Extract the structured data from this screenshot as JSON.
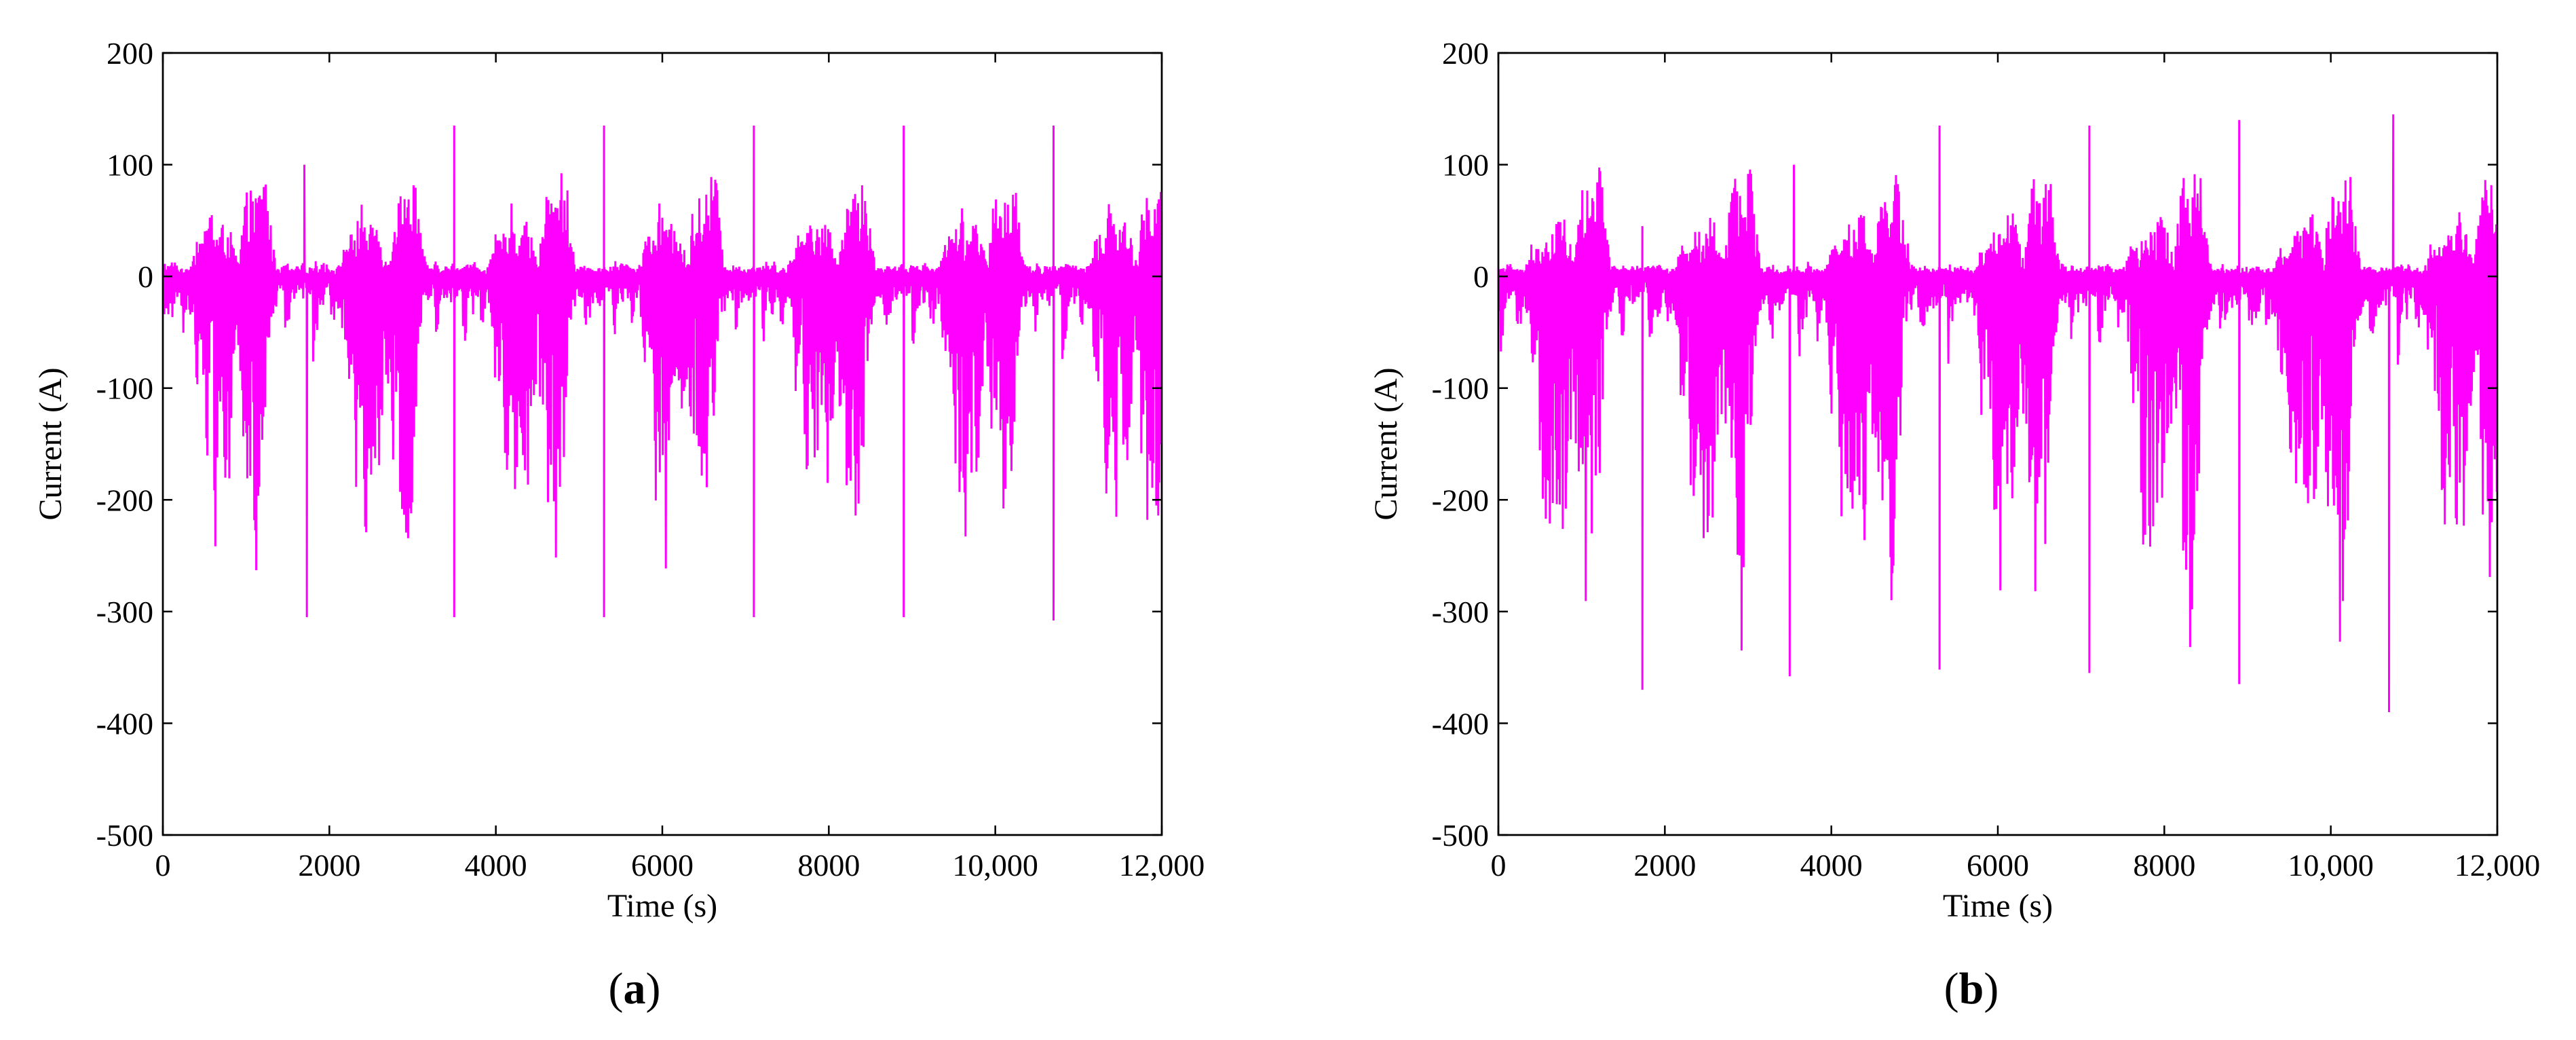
{
  "figure": {
    "panels": [
      "a",
      "b"
    ]
  },
  "chart_data": [
    {
      "type": "line",
      "panel_label": "a",
      "xlabel": "Time (s)",
      "ylabel": "Current (A)",
      "xlim": [
        0,
        12000
      ],
      "ylim": [
        -500,
        200
      ],
      "x_ticks": [
        0,
        2000,
        4000,
        6000,
        8000,
        10000,
        12000
      ],
      "x_tick_labels": [
        "0",
        "2000",
        "4000",
        "6000",
        "8000",
        "10,000",
        "12,000"
      ],
      "y_ticks": [
        -500,
        -400,
        -300,
        -200,
        -100,
        0,
        100,
        200
      ],
      "y_tick_labels": [
        "-500",
        "-400",
        "-300",
        "-200",
        "-100",
        "0",
        "100",
        "200"
      ],
      "grid": false,
      "series_color": "#ff00ff",
      "cycle_period": 1800,
      "cycle_start": 0,
      "cycle_profile_x": [
        0,
        40,
        80,
        120,
        160,
        200,
        240,
        280,
        320,
        360,
        400,
        440,
        480,
        520,
        560,
        600,
        640,
        680,
        720,
        760,
        800,
        840,
        880,
        920,
        960,
        1000,
        1040,
        1080,
        1120,
        1160,
        1200,
        1240,
        1280,
        1320,
        1360,
        1400,
        1440,
        1480,
        1520,
        1560,
        1600,
        1640,
        1680,
        1720,
        1760,
        1800
      ],
      "cycle_profile_upper": [
        12,
        14,
        10,
        16,
        12,
        8,
        10,
        6,
        12,
        20,
        40,
        40,
        38,
        42,
        66,
        65,
        42,
        45,
        48,
        50,
        46,
        30,
        20,
        10,
        60,
        72,
        88,
        70,
        75,
        85,
        100,
        98,
        60,
        30,
        12,
        10,
        8,
        14,
        10,
        6,
        10,
        8,
        12,
        10,
        8,
        12
      ],
      "cycle_profile_lower": [
        -80,
        -60,
        -30,
        -40,
        -20,
        -20,
        -60,
        -30,
        -30,
        -50,
        -110,
        -95,
        -70,
        -200,
        -225,
        -140,
        -280,
        -150,
        -200,
        -185,
        -190,
        -140,
        -110,
        -100,
        -180,
        -140,
        -285,
        -200,
        -305,
        -230,
        -200,
        -120,
        -60,
        -40,
        -30,
        -20,
        -20,
        -60,
        -40,
        -30,
        -20,
        -30,
        -20,
        -20,
        -15,
        -20
      ],
      "peaks": [
        {
          "x": 1700,
          "y": 100
        },
        {
          "x": 3500,
          "y": 135
        },
        {
          "x": 5300,
          "y": 135
        },
        {
          "x": 7100,
          "y": 135
        },
        {
          "x": 8900,
          "y": 135
        },
        {
          "x": 10700,
          "y": 135
        },
        {
          "x": 1730,
          "y": -305
        },
        {
          "x": 3500,
          "y": -305
        },
        {
          "x": 5300,
          "y": -305
        },
        {
          "x": 7100,
          "y": -305
        },
        {
          "x": 8900,
          "y": -305
        },
        {
          "x": 10700,
          "y": -308
        }
      ]
    },
    {
      "type": "line",
      "panel_label": "b",
      "xlabel": "Time (s)",
      "ylabel": "Current (A)",
      "xlim": [
        0,
        12000
      ],
      "ylim": [
        -500,
        200
      ],
      "x_ticks": [
        0,
        2000,
        4000,
        6000,
        8000,
        10000,
        12000
      ],
      "x_tick_labels": [
        "0",
        "2000",
        "4000",
        "6000",
        "8000",
        "10,000",
        "12,000"
      ],
      "y_ticks": [
        -500,
        -400,
        -300,
        -200,
        -100,
        0,
        100,
        200
      ],
      "y_tick_labels": [
        "-500",
        "-400",
        "-300",
        "-200",
        "-100",
        "0",
        "100",
        "200"
      ],
      "grid": false,
      "series_color": "#ff00ff",
      "cycle_period": 1800,
      "cycle_start": 0,
      "cycle_profile_x": [
        0,
        40,
        80,
        120,
        160,
        200,
        240,
        280,
        320,
        360,
        400,
        440,
        480,
        520,
        560,
        600,
        640,
        680,
        720,
        760,
        800,
        840,
        880,
        920,
        960,
        1000,
        1040,
        1080,
        1120,
        1160,
        1200,
        1240,
        1280,
        1320,
        1360,
        1400,
        1440,
        1480,
        1520,
        1560,
        1600,
        1640,
        1680,
        1720,
        1760,
        1800
      ],
      "cycle_profile_upper": [
        10,
        12,
        8,
        14,
        10,
        6,
        8,
        6,
        10,
        18,
        30,
        28,
        25,
        30,
        45,
        50,
        40,
        45,
        55,
        60,
        55,
        40,
        25,
        15,
        60,
        75,
        95,
        75,
        80,
        90,
        105,
        100,
        60,
        30,
        12,
        10,
        8,
        12,
        10,
        6,
        10,
        8,
        10,
        8,
        8,
        10
      ],
      "cycle_profile_lower": [
        -90,
        -70,
        -35,
        -40,
        -25,
        -25,
        -65,
        -35,
        -35,
        -60,
        -125,
        -110,
        -90,
        -240,
        -260,
        -180,
        -320,
        -190,
        -240,
        -220,
        -240,
        -180,
        -150,
        -130,
        -220,
        -180,
        -330,
        -250,
        -360,
        -280,
        -240,
        -140,
        -70,
        -45,
        -35,
        -25,
        -25,
        -65,
        -45,
        -35,
        -25,
        -35,
        -25,
        -20,
        -18,
        -22
      ],
      "peaks": [
        {
          "x": 1730,
          "y": 45
        },
        {
          "x": 3550,
          "y": 100
        },
        {
          "x": 5300,
          "y": 135
        },
        {
          "x": 7100,
          "y": 135
        },
        {
          "x": 8900,
          "y": 140
        },
        {
          "x": 10750,
          "y": 145
        },
        {
          "x": 1730,
          "y": -370
        },
        {
          "x": 3500,
          "y": -358
        },
        {
          "x": 5300,
          "y": -352
        },
        {
          "x": 7100,
          "y": -355
        },
        {
          "x": 8900,
          "y": -365
        },
        {
          "x": 10700,
          "y": -390
        }
      ]
    }
  ]
}
